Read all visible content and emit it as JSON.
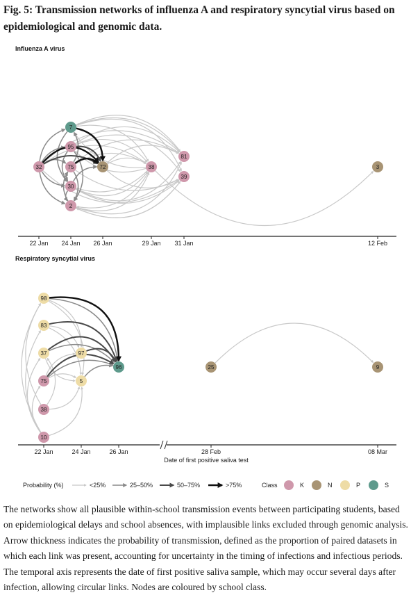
{
  "figure": {
    "title": "Fig. 5: Transmission networks of influenza A and respiratory syncytial virus based on epidemiological and genomic data.",
    "panels": {
      "flu": {
        "label": "Influenza A virus",
        "ticks": [
          "22 Jan",
          "24 Jan",
          "26 Jan",
          "29 Jan",
          "31 Jan",
          "12 Feb"
        ]
      },
      "rsv": {
        "label": "Respiratory syncytial virus",
        "ticks": [
          "22 Jan",
          "24 Jan",
          "26 Jan",
          "28 Feb",
          "08 Mar"
        ],
        "axis_title": "Date of first positive saliva test"
      }
    },
    "legend": {
      "probability_title": "Probability (%)",
      "probability_bins": [
        {
          "label": "<25%",
          "color": "#c8c8c8"
        },
        {
          "label": "25–50%",
          "color": "#8a8a8a"
        },
        {
          "label": "50–75%",
          "color": "#4a4a4a"
        },
        {
          "label": ">75%",
          "color": "#111111"
        }
      ],
      "class_title": "Class",
      "classes": [
        {
          "label": "K",
          "color": "#cf98ab"
        },
        {
          "label": "N",
          "color": "#a89474"
        },
        {
          "label": "P",
          "color": "#eedca6"
        },
        {
          "label": "S",
          "color": "#5e9a8c"
        }
      ]
    },
    "caption": "The networks show all plausible within-school transmission events between participating students, based on epidemiological delays and school absences, with implausible links excluded through genomic analysis. Arrow thickness indicates the probability of transmission, defined as the proportion of paired datasets in which each link was present, accounting for uncertainty in the timing of infections and infectious periods. The temporal axis represents the date of first positive saliva sample, which may occur several days after infection, allowing circular links. Nodes are coloured by school class."
  },
  "flu_nodes": [
    {
      "id": "7",
      "class": "S"
    },
    {
      "id": "95",
      "class": "K"
    },
    {
      "id": "32",
      "class": "K"
    },
    {
      "id": "75",
      "class": "K"
    },
    {
      "id": "72",
      "class": "N"
    },
    {
      "id": "38",
      "class": "K"
    },
    {
      "id": "81",
      "class": "K"
    },
    {
      "id": "39",
      "class": "K"
    },
    {
      "id": "30",
      "class": "K"
    },
    {
      "id": "2",
      "class": "K"
    },
    {
      "id": "3",
      "class": "N"
    }
  ],
  "rsv_nodes": [
    {
      "id": "98",
      "class": "P"
    },
    {
      "id": "83",
      "class": "P"
    },
    {
      "id": "37",
      "class": "P"
    },
    {
      "id": "97",
      "class": "P"
    },
    {
      "id": "96",
      "class": "S"
    },
    {
      "id": "75",
      "class": "K"
    },
    {
      "id": "5",
      "class": "P"
    },
    {
      "id": "38",
      "class": "K"
    },
    {
      "id": "10",
      "class": "K"
    },
    {
      "id": "25",
      "class": "N"
    },
    {
      "id": "9",
      "class": "N"
    }
  ]
}
